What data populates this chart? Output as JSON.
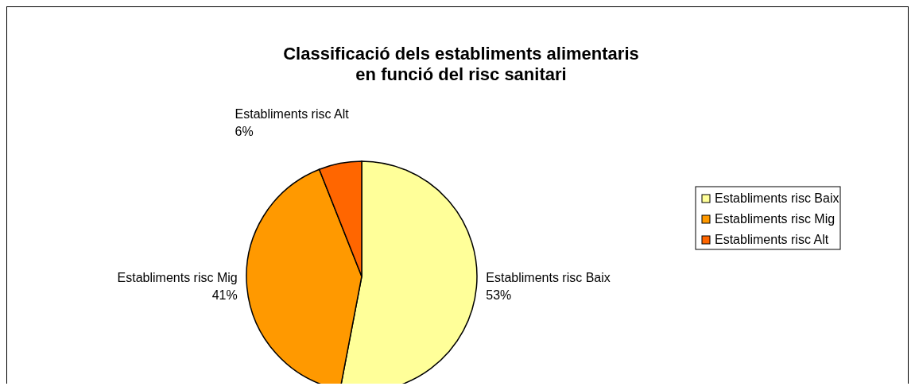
{
  "chart_data": {
    "type": "pie",
    "title": "Classificació dels establiments alimentaris\nen funció del risc sanitari",
    "categories": [
      "Establiments risc Baix",
      "Establiments risc Mig",
      "Establiments risc Alt"
    ],
    "values": [
      53,
      41,
      6
    ],
    "colors": [
      "#ffff99",
      "#ff9900",
      "#ff6600"
    ],
    "value_labels": [
      "53%",
      "41%",
      "6%"
    ],
    "legend": "right"
  }
}
